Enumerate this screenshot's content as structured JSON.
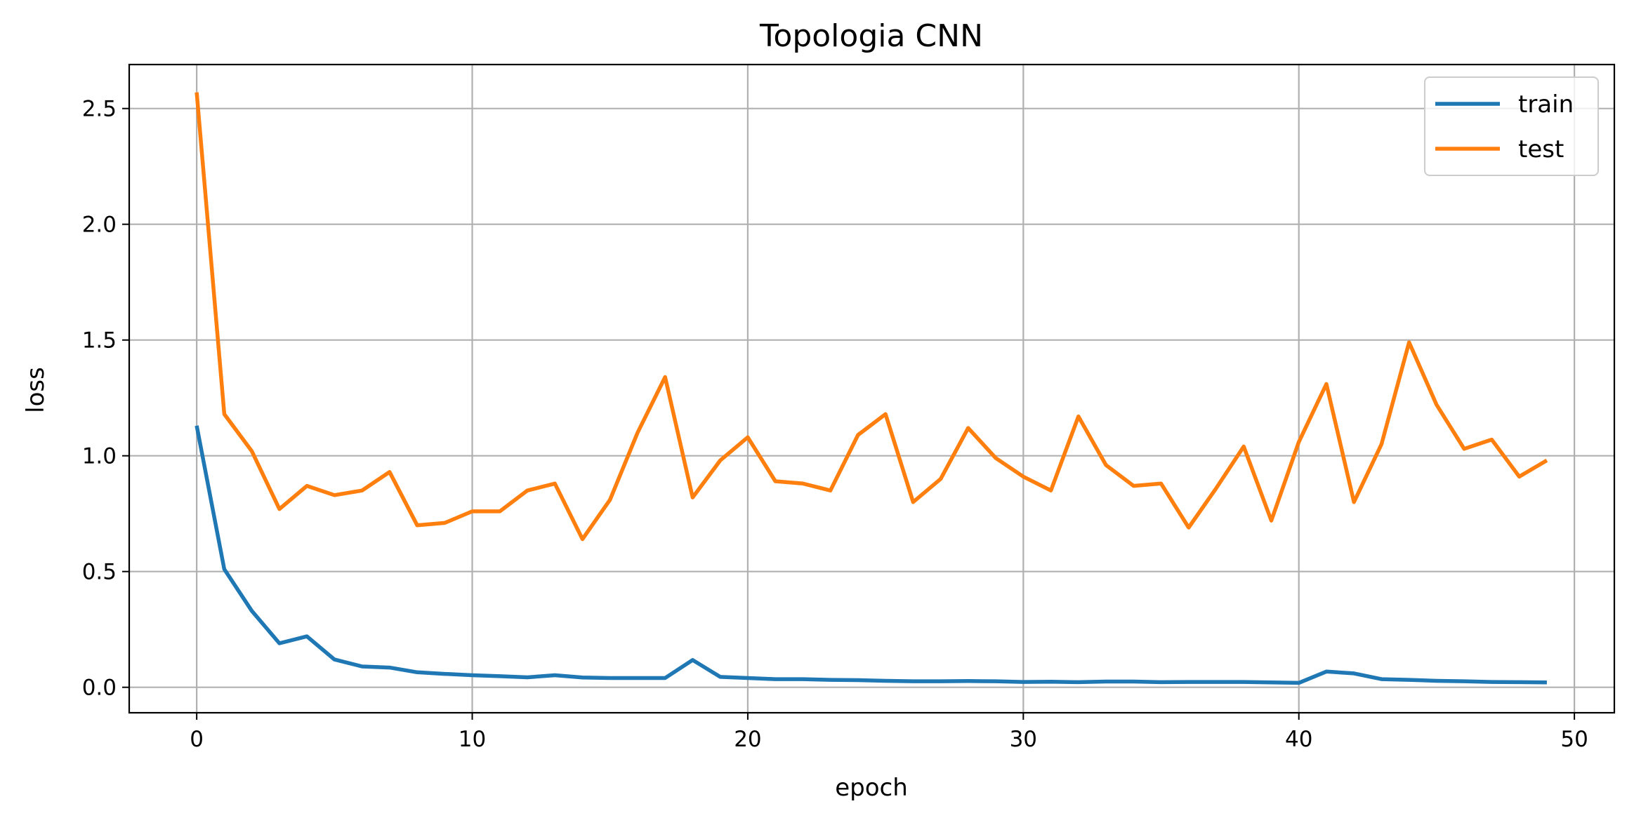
{
  "chart_data": {
    "type": "line",
    "title": "Topologia CNN",
    "xlabel": "epoch",
    "ylabel": "loss",
    "xlim": [
      -2.45,
      51.45
    ],
    "ylim": [
      -0.11,
      2.69
    ],
    "xticks": [
      0,
      10,
      20,
      30,
      40,
      50
    ],
    "yticks": [
      0.0,
      0.5,
      1.0,
      1.5,
      2.0,
      2.5
    ],
    "ytick_labels": [
      "0.0",
      "0.5",
      "1.0",
      "1.5",
      "2.0",
      "2.5"
    ],
    "grid": true,
    "legend_position": "top-right",
    "x": [
      0,
      1,
      2,
      3,
      4,
      5,
      6,
      7,
      8,
      9,
      10,
      11,
      12,
      13,
      14,
      15,
      16,
      17,
      18,
      19,
      20,
      21,
      22,
      23,
      24,
      25,
      26,
      27,
      28,
      29,
      30,
      31,
      32,
      33,
      34,
      35,
      36,
      37,
      38,
      39,
      40,
      41,
      42,
      43,
      44,
      45,
      46,
      47,
      48,
      49
    ],
    "series": [
      {
        "name": "train",
        "color": "#1f77b4",
        "values": [
          1.13,
          0.51,
          0.33,
          0.19,
          0.22,
          0.12,
          0.09,
          0.085,
          0.065,
          0.058,
          0.052,
          0.048,
          0.043,
          0.052,
          0.042,
          0.04,
          0.04,
          0.04,
          0.118,
          0.045,
          0.04,
          0.035,
          0.035,
          0.032,
          0.031,
          0.028,
          0.026,
          0.026,
          0.027,
          0.026,
          0.023,
          0.024,
          0.022,
          0.025,
          0.025,
          0.022,
          0.023,
          0.023,
          0.023,
          0.021,
          0.019,
          0.068,
          0.06,
          0.035,
          0.032,
          0.028,
          0.026,
          0.023,
          0.022,
          0.021
        ]
      },
      {
        "name": "test",
        "color": "#ff7f0e",
        "values": [
          2.57,
          1.18,
          1.02,
          0.77,
          0.87,
          0.83,
          0.85,
          0.93,
          0.7,
          0.71,
          0.76,
          0.76,
          0.85,
          0.88,
          0.64,
          0.81,
          1.1,
          1.34,
          0.82,
          0.98,
          1.08,
          0.89,
          0.88,
          0.85,
          1.09,
          1.18,
          0.8,
          0.9,
          1.12,
          0.99,
          0.91,
          0.85,
          1.17,
          0.96,
          0.87,
          0.88,
          0.69,
          0.86,
          1.04,
          0.72,
          1.06,
          1.31,
          0.8,
          1.05,
          1.49,
          1.22,
          1.03,
          1.07,
          0.91,
          0.98
        ]
      }
    ]
  }
}
